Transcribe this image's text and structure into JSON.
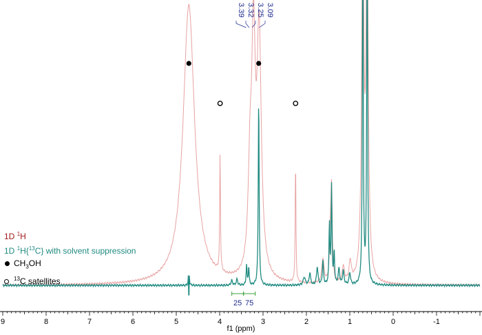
{
  "chart_data": {
    "type": "line",
    "xlabel": "f1 (ppm)",
    "xlim": [
      9,
      -2
    ],
    "x_reversed": true,
    "ticks": [
      "9",
      "8",
      "7",
      "6",
      "5",
      "4",
      "3",
      "2",
      "1",
      "0",
      "-1"
    ],
    "tick_values": [
      9,
      8,
      7,
      6,
      5,
      4,
      3,
      2,
      1,
      0,
      -1
    ],
    "colors": {
      "series_1d": "#e8a2a2",
      "series_suppressed": "#1f8a80",
      "integral": "#3aa03a",
      "peak_label": "#1c2a8c"
    },
    "peak_labels": [
      "3.39",
      "3.32",
      "3.25",
      "3.09"
    ],
    "peak_label_positions_ppm": [
      3.39,
      3.32,
      3.25,
      3.09
    ],
    "integrals": [
      {
        "label": "25",
        "from_ppm": 3.72,
        "to_ppm": 3.45
      },
      {
        "label": "75",
        "from_ppm": 3.45,
        "to_ppm": 3.18
      }
    ],
    "markers": [
      {
        "kind": "filled",
        "ppm": 4.71,
        "meaning": "CH3OH"
      },
      {
        "kind": "filled",
        "ppm": 3.1,
        "meaning": "CH3OH"
      },
      {
        "kind": "open",
        "ppm": 3.99,
        "meaning": "13C satellites"
      },
      {
        "kind": "open",
        "ppm": 2.25,
        "meaning": "13C satellites"
      }
    ],
    "series": [
      {
        "name_parts": [
          "1D ",
          "1",
          "H"
        ],
        "color": "#e8a2a2",
        "peaks": [
          {
            "ppm": 4.71,
            "height": 1.4,
            "width": 0.16
          },
          {
            "ppm": 3.99,
            "height": 0.6,
            "width": 0.01
          },
          {
            "ppm": 3.3,
            "height": 0.45,
            "width": 0.05
          },
          {
            "ppm": 3.22,
            "height": 1.1,
            "width": 0.05
          },
          {
            "ppm": 3.09,
            "height": 1.2,
            "width": 0.06
          },
          {
            "ppm": 2.25,
            "height": 0.62,
            "width": 0.01
          },
          {
            "ppm": 1.62,
            "height": 0.12,
            "width": 0.03
          },
          {
            "ppm": 1.45,
            "height": 0.2,
            "width": 0.02
          },
          {
            "ppm": 1.42,
            "height": 0.45,
            "width": 0.02
          },
          {
            "ppm": 1.15,
            "height": 0.08,
            "width": 0.03
          },
          {
            "ppm": 0.99,
            "height": 0.1,
            "width": 0.03
          },
          {
            "ppm": 0.7,
            "height": 1.8,
            "width": 0.03
          },
          {
            "ppm": 0.6,
            "height": 1.8,
            "width": 0.03
          }
        ]
      },
      {
        "name_parts": [
          "1D ",
          "1",
          "H{",
          "13",
          "C} with solvent suppression"
        ],
        "color": "#1f8a80",
        "peaks": [
          {
            "ppm": 4.71,
            "height": 0.15,
            "width": 0.008,
            "dip": true
          },
          {
            "ppm": 3.72,
            "height": 0.025,
            "width": 0.02
          },
          {
            "ppm": 3.6,
            "height": 0.03,
            "width": 0.02
          },
          {
            "ppm": 3.38,
            "height": 0.1,
            "width": 0.012
          },
          {
            "ppm": 3.33,
            "height": 0.09,
            "width": 0.012
          },
          {
            "ppm": 3.1,
            "height": 0.95,
            "width": 0.012
          },
          {
            "ppm": 2.05,
            "height": 0.04,
            "width": 0.03
          },
          {
            "ppm": 1.92,
            "height": 0.06,
            "width": 0.02
          },
          {
            "ppm": 1.75,
            "height": 0.09,
            "width": 0.02
          },
          {
            "ppm": 1.62,
            "height": 0.12,
            "width": 0.015
          },
          {
            "ppm": 1.47,
            "height": 0.3,
            "width": 0.012
          },
          {
            "ppm": 1.42,
            "height": 0.49,
            "width": 0.012
          },
          {
            "ppm": 1.36,
            "height": 0.16,
            "width": 0.012
          },
          {
            "ppm": 1.25,
            "height": 0.08,
            "width": 0.02
          },
          {
            "ppm": 1.15,
            "height": 0.07,
            "width": 0.02
          },
          {
            "ppm": 1.0,
            "height": 0.06,
            "width": 0.02
          },
          {
            "ppm": 0.7,
            "height": 1.8,
            "width": 0.012
          },
          {
            "ppm": 0.6,
            "height": 1.8,
            "width": 0.012
          }
        ]
      }
    ]
  },
  "legend": {
    "row1": {
      "text": "1D ",
      "sup": "1",
      "tail": "H"
    },
    "row2": {
      "text": "1D ",
      "sup1": "1",
      "mid": "H{",
      "sup2": "13",
      "tail": "C} with solvent suppression"
    },
    "row3": {
      "text": "CH",
      "sub": "3",
      "tail": "OH"
    },
    "row4": {
      "sup": "13",
      "tail": "C satellites"
    }
  }
}
